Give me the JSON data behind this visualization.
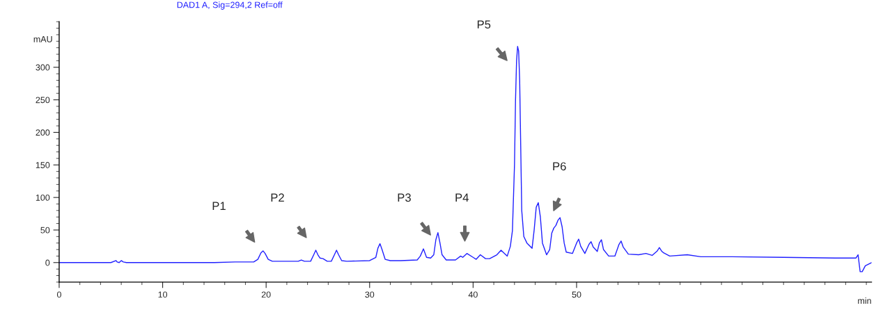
{
  "chart_data": {
    "type": "line",
    "title": "DAD1 A, Sig=294,2 Ref=off",
    "xlabel": "min",
    "ylabel": "mAU",
    "series": [
      {
        "color": "#2020ff",
        "x": [
          0,
          5.0,
          5.5,
          5.6,
          5.8,
          6.0,
          6.2,
          6.5,
          10,
          15,
          17,
          18.8,
          19.2,
          19.5,
          19.7,
          19.9,
          20.2,
          20.6,
          22.5,
          23.1,
          23.4,
          23.7,
          24.3,
          24.6,
          24.8,
          25.0,
          25.2,
          25.5,
          25.9,
          26.3,
          26.6,
          26.8,
          27.0,
          27.3,
          27.8,
          30.0,
          30.6,
          30.8,
          31.0,
          31.2,
          31.5,
          32.0,
          33,
          34.6,
          34.9,
          35.2,
          35.5,
          35.9,
          36.2,
          36.4,
          36.6,
          36.8,
          37.0,
          37.4,
          38.3,
          38.8,
          39.0,
          39.4,
          40.0,
          40.3,
          40.7,
          41.2,
          41.6,
          42.3,
          42.7,
          43.3,
          43.6,
          43.8,
          44.0,
          44.1,
          44.2,
          44.3,
          44.4,
          44.5,
          44.6,
          44.7,
          44.9,
          45.2,
          45.7,
          45.9,
          46.1,
          46.3,
          46.5,
          46.7,
          47.1,
          47.4,
          47.6,
          47.8,
          48.0,
          48.2,
          48.4,
          48.6,
          48.8,
          49.0,
          49.6,
          50.0,
          50.2,
          50.4,
          50.8,
          51.2,
          51.4,
          51.6,
          52.0,
          52.2,
          52.4,
          52.6,
          53.1,
          53.7,
          54.1,
          54.3,
          54.5,
          55.0,
          56.0,
          56.7,
          57.3,
          57.8,
          58.0,
          58.2,
          58.4,
          59.0,
          60.7,
          62,
          65,
          70,
          75,
          77.0,
          77.2,
          77.4,
          77.6,
          77.9,
          78.5
        ],
        "values": [
          0,
          0,
          3,
          1,
          0,
          3,
          1,
          0,
          0,
          0,
          1,
          1,
          5,
          15,
          18,
          14,
          5,
          2,
          2,
          2,
          4,
          2,
          2,
          12,
          19,
          12,
          7,
          6,
          2,
          2,
          12,
          19,
          12,
          3,
          2,
          3,
          8,
          22,
          29,
          20,
          5,
          3,
          3,
          4,
          10,
          21,
          8,
          7,
          12,
          35,
          46,
          30,
          12,
          4,
          4,
          10,
          8,
          14,
          8,
          5,
          12,
          6,
          6,
          12,
          19,
          10,
          25,
          49,
          150,
          250,
          310,
          332,
          325,
          280,
          180,
          80,
          40,
          30,
          22,
          50,
          85,
          92,
          70,
          30,
          12,
          20,
          45,
          53,
          57,
          65,
          69,
          55,
          30,
          16,
          14,
          30,
          36,
          25,
          14,
          28,
          32,
          24,
          17,
          30,
          35,
          20,
          10,
          10,
          28,
          33,
          24,
          13,
          12,
          14,
          11,
          18,
          23,
          18,
          15,
          10,
          12,
          9,
          9,
          8,
          7,
          7,
          12,
          -14,
          -14,
          -5,
          0
        ]
      }
    ],
    "xlim": [
      0,
      78.5
    ],
    "ylim": [
      -30,
      370
    ],
    "xticks": [
      0,
      10,
      20,
      30,
      40,
      50
    ],
    "yticks": [
      0,
      50,
      100,
      150,
      200,
      250,
      300
    ],
    "grid": false,
    "legend": false,
    "marker": "none",
    "line_style": "solid",
    "annotations": [
      "P1",
      "P2",
      "P3",
      "P4",
      "P5",
      "P6"
    ]
  }
}
